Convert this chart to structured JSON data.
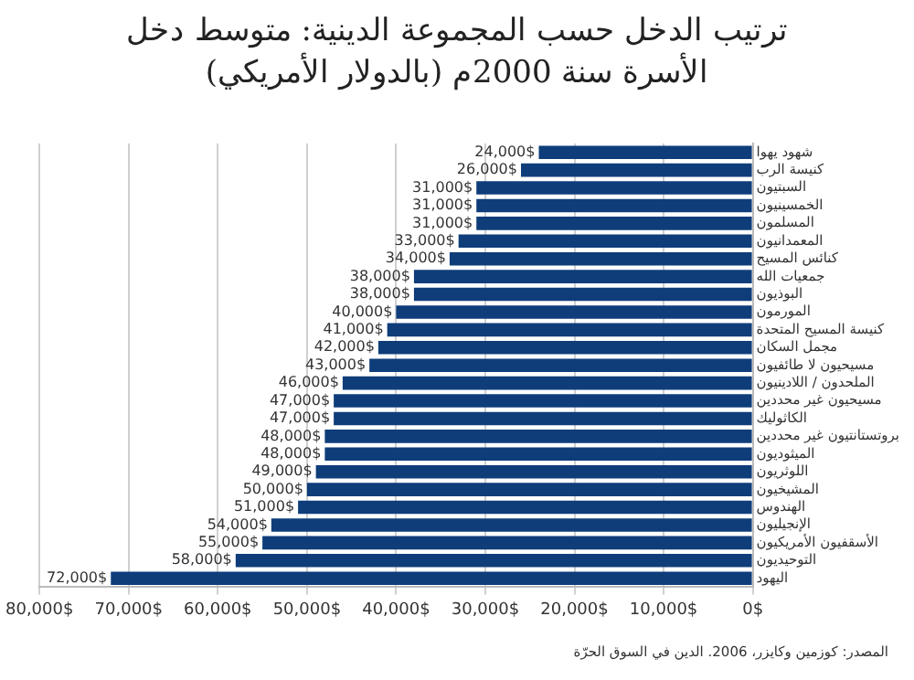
{
  "chart_data": {
    "type": "bar",
    "orientation": "horizontal",
    "title": "ترتيب الدخل حسب المجموعة الدينية: متوسط دخل الأسرة سنة 2000م (بالدولار الأمريكي)",
    "annotations": [
      "المصدر: كوزمين وكايزر، 2006. الدين في السوق الحرّة"
    ],
    "categories": [
      "شهود يهوا",
      "كنيسة الرب",
      "السبتيون",
      "الخمسينيون",
      "المسلمون",
      "المعمدانيون",
      "كنائس المسيح",
      "جمعيات الله",
      "البوذيون",
      "المورمون",
      "كنيسة المسيح المتحدة",
      "مجمل السكان",
      "مسيحيون لا طائفيون",
      "الملحدون / اللادينيون",
      "مسيحيون غير محددين",
      "الكاثوليك",
      "بروتستانتيون غير محددين",
      "الميثوديون",
      "اللوثريون",
      "المشيخيون",
      "الهندوس",
      "الإنجيليون",
      "الأسقفيون الأمريكيون",
      "التوحيديون",
      "اليهود"
    ],
    "values": [
      24000,
      26000,
      31000,
      31000,
      31000,
      33000,
      34000,
      38000,
      38000,
      40000,
      41000,
      42000,
      43000,
      46000,
      47000,
      47000,
      48000,
      48000,
      49000,
      50000,
      51000,
      54000,
      55000,
      58000,
      72000
    ],
    "value_labels": [
      "24,000$",
      "26,000$",
      "31,000$",
      "31,000$",
      "31,000$",
      "33,000$",
      "34,000$",
      "38,000$",
      "38,000$",
      "40,000$",
      "41,000$",
      "42,000$",
      "43,000$",
      "46,000$",
      "47,000$",
      "47,000$",
      "48,000$",
      "48,000$",
      "49,000$",
      "50,000$",
      "51,000$",
      "54,000$",
      "55,000$",
      "58,000$",
      "72,000$"
    ],
    "color": "#0e3d7a",
    "xlim": [
      80000,
      0
    ],
    "xticks": [
      {
        "value": 80000,
        "label": "80,000$"
      },
      {
        "value": 70000,
        "label": "70,000$"
      },
      {
        "value": 60000,
        "label": "60,000$"
      },
      {
        "value": 50000,
        "label": "50,000$"
      },
      {
        "value": 40000,
        "label": "40,000$"
      },
      {
        "value": 30000,
        "label": "30,000$"
      },
      {
        "value": 20000,
        "label": "20,000$"
      },
      {
        "value": 10000,
        "label": "10,000$"
      },
      {
        "value": 0,
        "label": "0$"
      }
    ],
    "grid": "x",
    "legend": false
  }
}
